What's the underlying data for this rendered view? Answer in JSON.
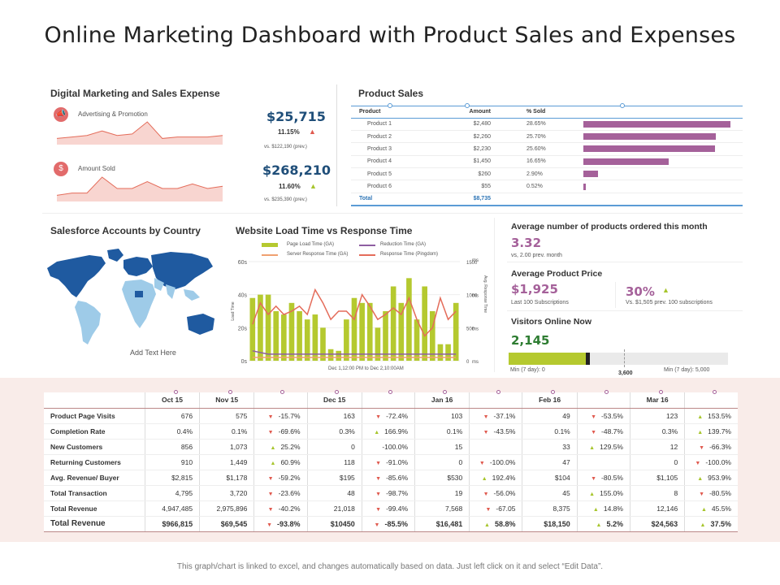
{
  "title": "Online Marketing Dashboard with Product Sales and Expenses",
  "digital": {
    "title": "Digital Marketing and Sales Expense",
    "rows": [
      {
        "label": "Advertising & Promotion",
        "value": "$25,715",
        "pct": "11.15%",
        "trend": "up-red",
        "prev": "vs. $122,190  (prev.)"
      },
      {
        "label": "Amount Sold",
        "value": "$268,210",
        "pct": "11.60%",
        "trend": "up-green",
        "prev": "vs. $235,390  (prev.)"
      }
    ],
    "sparklines": [
      [
        3,
        4,
        5,
        8,
        5,
        6,
        14,
        3,
        4,
        4,
        4,
        5
      ],
      [
        2,
        3,
        3,
        10,
        5,
        5,
        8,
        5,
        5,
        7,
        5,
        6
      ]
    ]
  },
  "product_sales": {
    "title": "Product Sales",
    "headers": [
      "Product",
      "Amount",
      "% Sold"
    ],
    "rows": [
      {
        "product": "Product 1",
        "amount": "$2,480",
        "pct": "28.65%",
        "share": 28.65
      },
      {
        "product": "Product 2",
        "amount": "$2,260",
        "pct": "25.70%",
        "share": 25.7
      },
      {
        "product": "Product 3",
        "amount": "$2,230",
        "pct": "25.60%",
        "share": 25.6
      },
      {
        "product": "Product 4",
        "amount": "$1,450",
        "pct": "16.65%",
        "share": 16.65
      },
      {
        "product": "Product 5",
        "amount": "$260",
        "pct": "2.90%",
        "share": 2.9
      },
      {
        "product": "Product 6",
        "amount": "$55",
        "pct": "0.52%",
        "share": 0.52
      }
    ],
    "total_label": "Total",
    "total_amount": "$8,735"
  },
  "salesforce": {
    "title": "Salesforce Accounts by Country",
    "caption": "Add Text Here"
  },
  "website": {
    "title": "Website Load Time vs Response Time",
    "legend": [
      "Page Load Time (GA)",
      "Reduction Time (GA)",
      "Server Response Time (GA)",
      "Response Time (Pingdom)"
    ],
    "y_left_label": "Load Time",
    "y_right_label": "Avg. Response Time",
    "y_left_ticks": [
      "60s",
      "40s",
      "20s",
      "0s"
    ],
    "y_right_ticks": [
      "1500",
      "1000",
      "500",
      "0"
    ],
    "y_right_units": [
      "ms",
      "ms",
      "ms",
      "ms"
    ],
    "x_caption": "Dec 1,12:00 PM to Dec 2,10:00AM"
  },
  "chart_data": {
    "type": "bar",
    "title": "Website Load Time vs Response Time",
    "xlabel": "Dec 1,12:00 PM to Dec 2,10:00AM",
    "ylabel": "Load Time",
    "ylim": [
      0,
      60
    ],
    "series": [
      {
        "name": "Page Load Time (GA)",
        "values": [
          38,
          40,
          40,
          30,
          28,
          35,
          30,
          25,
          28,
          20,
          7,
          6,
          25,
          38,
          35,
          35,
          20,
          30,
          45,
          35,
          50,
          25,
          45,
          30,
          10,
          10,
          35
        ]
      },
      {
        "name": "Response Time (Pingdom)",
        "values": [
          22,
          35,
          28,
          33,
          28,
          30,
          33,
          28,
          43,
          35,
          25,
          30,
          30,
          25,
          40,
          33,
          25,
          28,
          32,
          28,
          38,
          25,
          15,
          20,
          38,
          25,
          30
        ]
      },
      {
        "name": "Reduction Time (GA)",
        "values": [
          6,
          5,
          4,
          4,
          4,
          4,
          4,
          4,
          4,
          4,
          4,
          4,
          4,
          4,
          4,
          4,
          4,
          4,
          4,
          4,
          4,
          4,
          4,
          4,
          4,
          4,
          4
        ]
      },
      {
        "name": "Server Response Time (GA)",
        "values": [
          2,
          2,
          2,
          2,
          2,
          2,
          2,
          2,
          2,
          2,
          2,
          2,
          2,
          2,
          2,
          2,
          2,
          2,
          2,
          2,
          2,
          2,
          2,
          2,
          2,
          2,
          2
        ]
      }
    ]
  },
  "stats": {
    "avg_products_label": "Average number of products ordered this month",
    "avg_products_value": "3.32",
    "avg_products_prev": "vs, 2.00  prev. month",
    "avg_price_label": "Average Product Price",
    "avg_price_value": "$1,925",
    "avg_price_sub": "Last 100 Subscriptions",
    "avg_price_pct": "30%",
    "avg_price_vs": "Vs. $1,505  prev. 100  subscriptions",
    "visitors_label": "Visitors Online Now",
    "visitors_value": "2,145",
    "visitors_fill": 0.33,
    "visitors_marker": "3,600",
    "visitors_min": "Min (7 day): 0",
    "visitors_max": "Min (7 day): 5,000"
  },
  "metrics": {
    "headers": [
      "Oct 15",
      "Nov 15",
      "",
      "Dec 15",
      "",
      "Jan 16",
      "",
      "Feb 16",
      "",
      "Mar 16",
      ""
    ],
    "rows": [
      {
        "label": "Product Page Visits",
        "cells": [
          "676",
          "575",
          {
            "d": "dn",
            "v": "-15.7%"
          },
          "163",
          {
            "d": "dn",
            "v": "-72.4%"
          },
          "103",
          {
            "d": "dn",
            "v": "-37.1%"
          },
          "49",
          {
            "d": "dn",
            "v": "-53.5%"
          },
          "123",
          {
            "d": "up",
            "v": "153.5%"
          }
        ]
      },
      {
        "label": "Completion Rate",
        "cells": [
          "0.4%",
          "0.1%",
          {
            "d": "dn",
            "v": "-69.6%"
          },
          "0.3%",
          {
            "d": "up",
            "v": "166.9%"
          },
          "0.1%",
          {
            "d": "dn",
            "v": "-43.5%"
          },
          "0.1%",
          {
            "d": "dn",
            "v": "-48.7%"
          },
          "0.3%",
          {
            "d": "up",
            "v": "139.7%"
          }
        ]
      },
      {
        "label": "New Customers",
        "cells": [
          "856",
          "1,073",
          {
            "d": "up",
            "v": "25.2%"
          },
          "0",
          {
            "d": "",
            "v": "-100.0%"
          },
          "15",
          {
            "d": "",
            "v": ""
          },
          "33",
          {
            "d": "up",
            "v": "129.5%"
          },
          "12",
          {
            "d": "dn",
            "v": "-66.3%"
          }
        ]
      },
      {
        "label": "Returning Customers",
        "cells": [
          "910",
          "1,449",
          {
            "d": "up",
            "v": "60.9%"
          },
          "118",
          {
            "d": "dn",
            "v": "-91.0%"
          },
          "0",
          {
            "d": "dn",
            "v": "-100.0%"
          },
          "47",
          {
            "d": "",
            "v": ""
          },
          "0",
          {
            "d": "dn",
            "v": "-100.0%"
          }
        ]
      },
      {
        "label": "Avg.  Revenue/ Buyer",
        "cells": [
          "$2,815",
          "$1,178",
          {
            "d": "dn",
            "v": "-59.2%"
          },
          "$195",
          {
            "d": "dn",
            "v": "-85.6%"
          },
          "$530",
          {
            "d": "up",
            "v": "192.4%"
          },
          "$104",
          {
            "d": "dn",
            "v": "-80.5%"
          },
          "$1,105",
          {
            "d": "up",
            "v": "953.9%"
          }
        ]
      },
      {
        "label": "Total Transaction",
        "cells": [
          "4,795",
          "3,720",
          {
            "d": "dn",
            "v": "-23.6%"
          },
          "48",
          {
            "d": "dn",
            "v": "-98.7%"
          },
          "19",
          {
            "d": "dn",
            "v": "-56.0%"
          },
          "45",
          {
            "d": "up",
            "v": "155.0%"
          },
          "8",
          {
            "d": "dn",
            "v": "-80.5%"
          }
        ]
      },
      {
        "label": "Total Revenue",
        "cells": [
          "4,947,485",
          "2,975,896",
          {
            "d": "dn",
            "v": "-40.2%"
          },
          "21,018",
          {
            "d": "dn",
            "v": "-99.4%"
          },
          "7,568",
          {
            "d": "dn",
            "v": "-67.05"
          },
          "8,375",
          {
            "d": "up",
            "v": "14.8%"
          },
          "12,146",
          {
            "d": "up",
            "v": "45.5%"
          }
        ]
      }
    ],
    "total_row": {
      "label": "Total Revenue",
      "cells": [
        "$966,815",
        "$69,545",
        {
          "d": "dn",
          "v": "-93.8%"
        },
        "$10450",
        {
          "d": "dn",
          "v": "-85.5%"
        },
        "$16,481",
        {
          "d": "up",
          "v": "58.8%"
        },
        "$18,150",
        {
          "d": "up",
          "v": "5.2%"
        },
        "$24,563",
        {
          "d": "up",
          "v": "37.5%"
        }
      ]
    }
  },
  "colors": {
    "accent": "#a5619a",
    "blue": "#1f4e79",
    "green_bar": "#b5c92f",
    "line_red": "#e46c5a",
    "line_purple": "#8e5ea2",
    "map_dark": "#1f5aa0",
    "map_light": "#9ecbe8"
  },
  "footer": "This graph/chart is linked to excel, and changes automatically based on data. Just left click on it and select “Edit Data”."
}
